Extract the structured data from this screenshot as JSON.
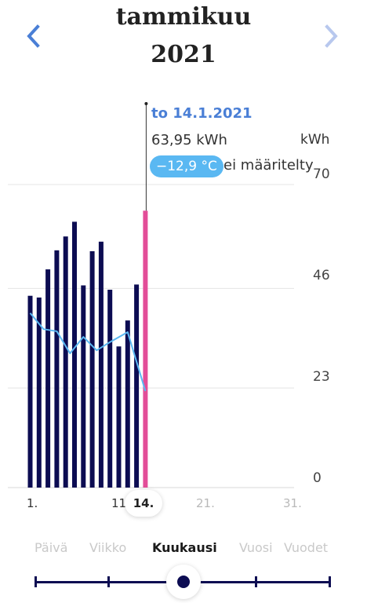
{
  "header": {
    "month": "tammikuu",
    "year": "2021"
  },
  "nav": {
    "prev_icon": "chevron-left-icon",
    "next_icon": "chevron-right-icon"
  },
  "tooltip": {
    "date": "to 14.1.2021",
    "energy": "63,95 kWh",
    "temperature": "−12,9 °C",
    "note": "ei määritelty"
  },
  "chart_data": {
    "type": "bar",
    "unit": "kWh",
    "ylim": [
      0,
      70
    ],
    "yticks": [
      "0",
      "23",
      "46",
      "70"
    ],
    "x_labels": [
      {
        "label": "1.",
        "day": 1,
        "dim": false
      },
      {
        "label": "11.",
        "day": 11,
        "dim": false
      },
      {
        "label": "21.",
        "day": 21,
        "dim": true
      },
      {
        "label": "31.",
        "day": 31,
        "dim": true
      }
    ],
    "selected_day_label": "14.",
    "selected_day": 14,
    "categories": [
      1,
      2,
      3,
      4,
      5,
      6,
      7,
      8,
      9,
      10,
      11,
      12,
      13,
      14
    ],
    "values": [
      44.3,
      43.9,
      50.4,
      54.8,
      58.0,
      61.4,
      46.7,
      54.6,
      56.8,
      45.7,
      32.6,
      38.6,
      46.9,
      63.95
    ],
    "temperature_line": [
      40.3,
      36.6,
      36.1,
      31.0,
      34.8,
      31.7,
      33.6,
      35.9,
      22.3
    ],
    "temperature_line_x": [
      1,
      2.5,
      4,
      5.5,
      7,
      8.5,
      10,
      12,
      14
    ],
    "colors": {
      "bar": "#0c0c52",
      "selected_bar": "#e34d98",
      "temperature_line": "#5ab8f2",
      "grid": "#e4e4e4"
    },
    "grid": true
  },
  "periods": [
    {
      "label": "Päivä",
      "active": false
    },
    {
      "label": "Viikko",
      "active": false
    },
    {
      "label": "Kuukausi",
      "active": true
    },
    {
      "label": "Vuosi",
      "active": false
    },
    {
      "label": "Vuodet",
      "active": false
    }
  ]
}
